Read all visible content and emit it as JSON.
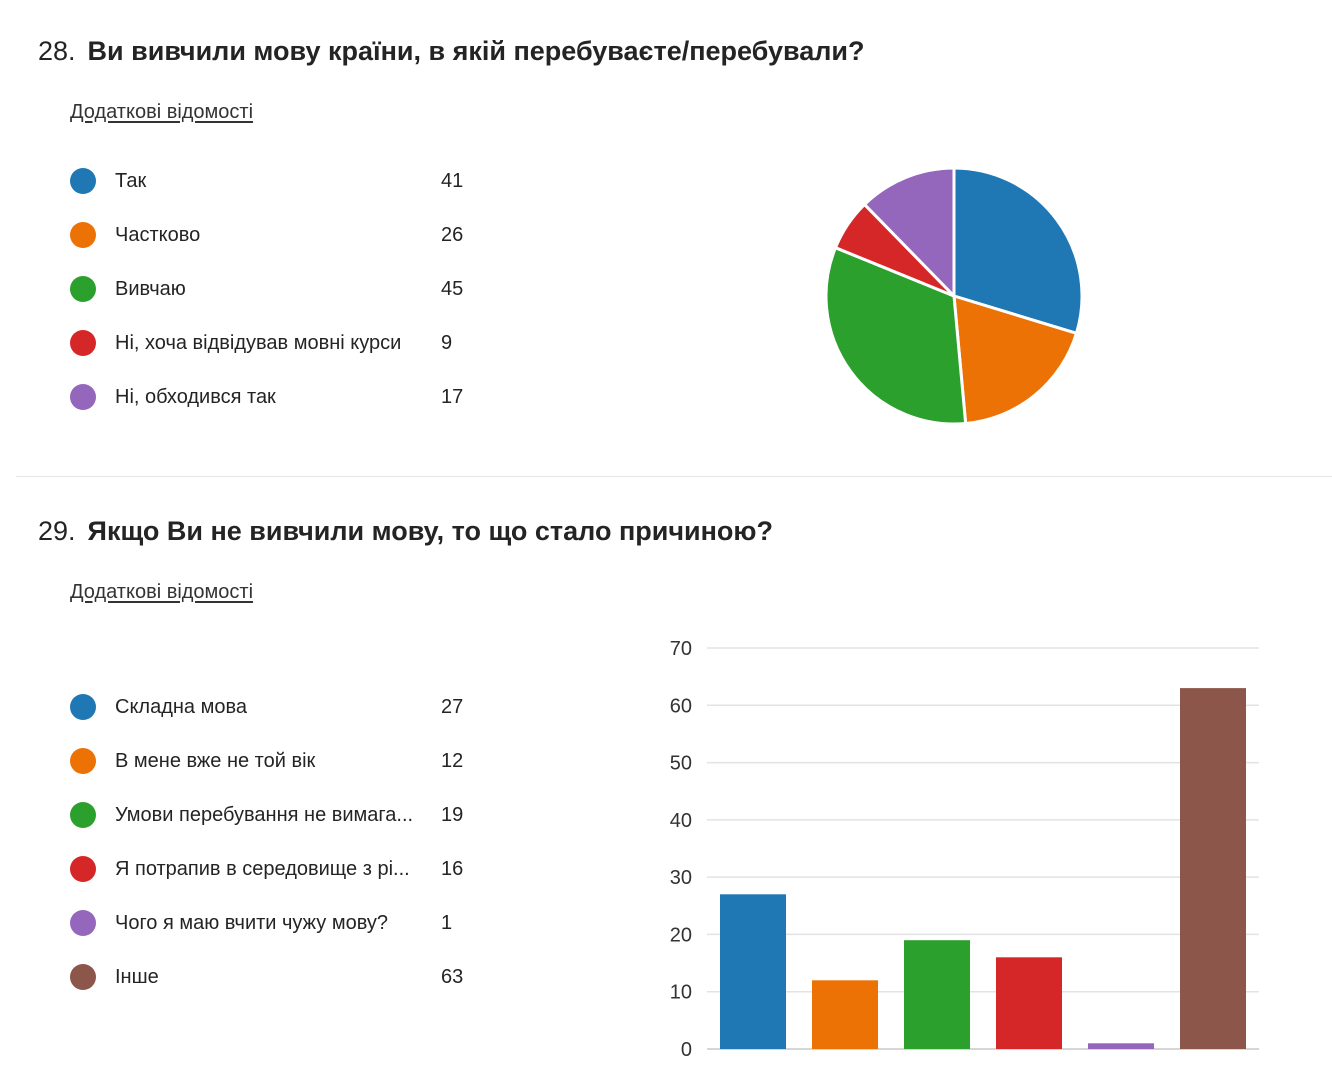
{
  "q28": {
    "number": "28.",
    "title": "Ви вивчили мову країни, в якій перебуваєте/перебували?",
    "more_info": "Додаткові відомості"
  },
  "q29": {
    "number": "29.",
    "title": "Якщо Ви не вивчили мову, то що стало причиною?",
    "more_info": "Додаткові відомості"
  },
  "chart_data": [
    {
      "type": "pie",
      "title": "",
      "categories": [
        "Так",
        "Частково",
        "Вивчаю",
        "Ні, хоча відвідував мовні курси",
        "Ні, обходився так"
      ],
      "values": [
        41,
        26,
        45,
        9,
        17
      ],
      "counts_display": [
        "41",
        "26",
        "45",
        "9",
        "17"
      ],
      "colors": [
        "#1f77b4",
        "#ed7205",
        "#2ca02c",
        "#d62728",
        "#9467bd"
      ],
      "legend_position": "left"
    },
    {
      "type": "bar",
      "title": "",
      "xlabel": "",
      "ylabel": "",
      "categories": [
        "Складна мова",
        "В мене вже не той вік",
        "Умови перебування не вимага...",
        "Я потрапив в середовище з рі...",
        "Чого я маю вчити чужу мову?",
        "Інше"
      ],
      "values": [
        27,
        12,
        19,
        16,
        1,
        63
      ],
      "counts_display": [
        "27",
        "12",
        "19",
        "16",
        "1",
        "63"
      ],
      "colors": [
        "#1f77b4",
        "#ed7205",
        "#2ca02c",
        "#d62728",
        "#9467bd",
        "#8c564b"
      ],
      "ylim": [
        0,
        70
      ],
      "yticks": [
        "0",
        "10",
        "20",
        "30",
        "40",
        "50",
        "60",
        "70"
      ],
      "grid": true,
      "legend_position": "left"
    }
  ]
}
